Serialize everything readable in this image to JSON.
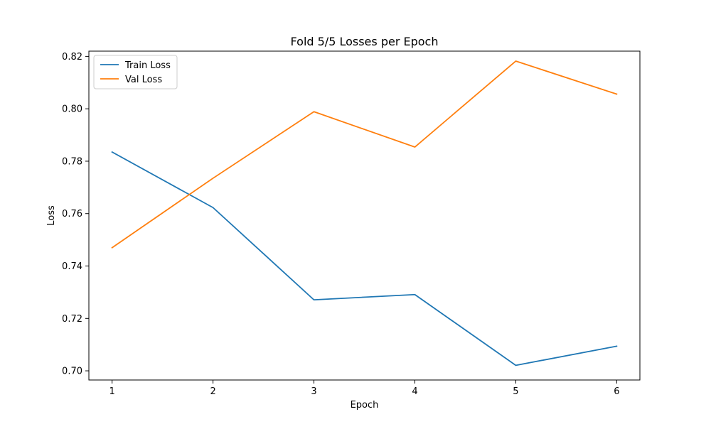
{
  "chart_data": {
    "type": "line",
    "title": "Fold 5/5 Losses per Epoch",
    "xlabel": "Epoch",
    "ylabel": "Loss",
    "x": [
      1,
      2,
      3,
      4,
      5,
      6
    ],
    "xticks": [
      "1",
      "2",
      "3",
      "4",
      "5",
      "6"
    ],
    "yticks": [
      "0.70",
      "0.72",
      "0.74",
      "0.76",
      "0.78",
      "0.80",
      "0.82"
    ],
    "xlim": [
      0.77,
      6.23
    ],
    "ylim": [
      0.6965,
      0.822
    ],
    "grid": false,
    "legend_position": "top-left",
    "series": [
      {
        "name": "Train Loss",
        "color": "#1f77b4",
        "values": [
          0.7835,
          0.7623,
          0.7271,
          0.7291,
          0.7021,
          0.7094
        ]
      },
      {
        "name": "Val Loss",
        "color": "#ff7f0e",
        "values": [
          0.747,
          0.7735,
          0.7989,
          0.7854,
          0.8182,
          0.8056
        ]
      }
    ]
  }
}
